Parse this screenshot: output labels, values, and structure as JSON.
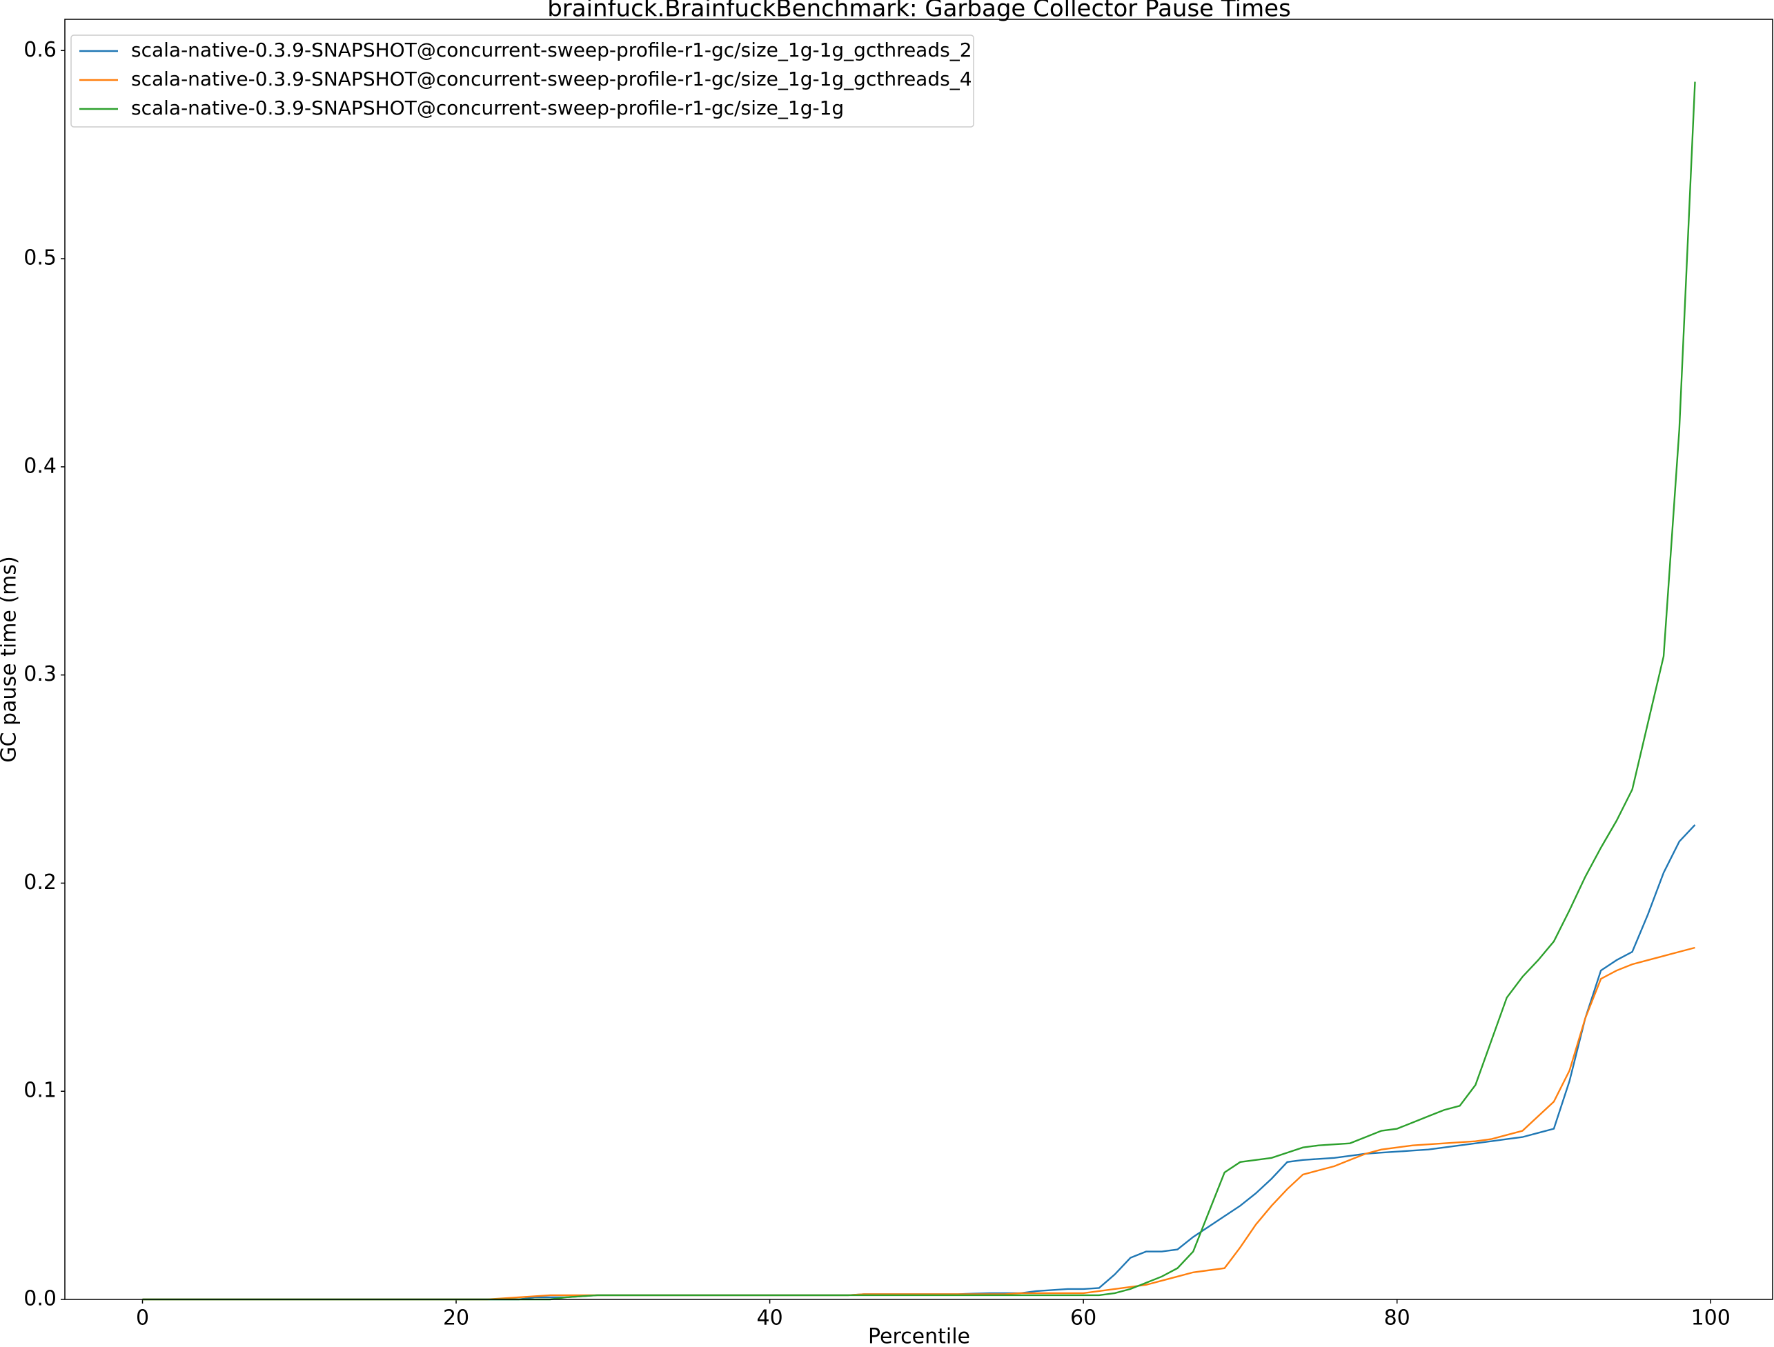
{
  "chart_data": {
    "type": "line",
    "title": "brainfuck.BrainfuckBenchmark: Garbage Collector Pause Times",
    "x_label": "Percentile",
    "y_label": "GC pause time (ms)",
    "x": [
      0,
      1,
      2,
      3,
      4,
      5,
      6,
      7,
      8,
      9,
      10,
      11,
      12,
      13,
      14,
      15,
      16,
      17,
      18,
      19,
      20,
      21,
      22,
      23,
      24,
      25,
      26,
      27,
      28,
      29,
      30,
      31,
      32,
      33,
      34,
      35,
      36,
      37,
      38,
      39,
      40,
      41,
      42,
      43,
      44,
      45,
      46,
      47,
      48,
      49,
      50,
      51,
      52,
      53,
      54,
      55,
      56,
      57,
      58,
      59,
      60,
      61,
      62,
      63,
      64,
      65,
      66,
      67,
      68,
      69,
      70,
      71,
      72,
      73,
      74,
      75,
      76,
      77,
      78,
      79,
      80,
      81,
      82,
      83,
      84,
      85,
      86,
      87,
      88,
      89,
      90,
      91,
      92,
      93,
      94,
      95,
      96,
      97,
      98,
      99
    ],
    "series": [
      {
        "name": "scala-native-0.3.9-SNAPSHOT@concurrent-sweep-profile-r1-gc/size_1g-1g_gcthreads_2",
        "color": "#1f77b4",
        "values": [
          0,
          0,
          0,
          0,
          0,
          0,
          0,
          0,
          0,
          0,
          0,
          0,
          0,
          0,
          0,
          0,
          0,
          0,
          0,
          0,
          0,
          0,
          0,
          0,
          0,
          0.001,
          0.001,
          0.001,
          0.0015,
          0.002,
          0.002,
          0.002,
          0.002,
          0.002,
          0.002,
          0.002,
          0.002,
          0.002,
          0.002,
          0.002,
          0.002,
          0.002,
          0.002,
          0.002,
          0.002,
          0.002,
          0.0025,
          0.0025,
          0.0025,
          0.0025,
          0.0025,
          0.0025,
          0.0025,
          0.0028,
          0.003,
          0.003,
          0.003,
          0.004,
          0.0045,
          0.005,
          0.005,
          0.0055,
          0.012,
          0.02,
          0.023,
          0.023,
          0.024,
          0.03,
          0.035,
          0.04,
          0.045,
          0.051,
          0.058,
          0.066,
          0.067,
          0.0675,
          0.068,
          0.069,
          0.07,
          0.0705,
          0.071,
          0.0715,
          0.072,
          0.073,
          0.074,
          0.075,
          0.076,
          0.077,
          0.078,
          0.08,
          0.082,
          0.105,
          0.135,
          0.158,
          0.163,
          0.167,
          0.185,
          0.205,
          0.22,
          0.228
        ]
      },
      {
        "name": "scala-native-0.3.9-SNAPSHOT@concurrent-sweep-profile-r1-gc/size_1g-1g_gcthreads_4",
        "color": "#ff7f0e",
        "values": [
          0,
          0,
          0,
          0,
          0,
          0,
          0,
          0,
          0,
          0,
          0,
          0,
          0,
          0,
          0,
          0,
          0,
          0,
          0,
          0,
          0,
          0,
          0,
          0.0005,
          0.001,
          0.0015,
          0.002,
          0.002,
          0.002,
          0.002,
          0.002,
          0.002,
          0.002,
          0.002,
          0.002,
          0.002,
          0.002,
          0.002,
          0.002,
          0.002,
          0.002,
          0.002,
          0.002,
          0.002,
          0.002,
          0.002,
          0.0025,
          0.0025,
          0.0025,
          0.0025,
          0.0025,
          0.0025,
          0.0025,
          0.0025,
          0.0025,
          0.0025,
          0.003,
          0.003,
          0.003,
          0.003,
          0.003,
          0.004,
          0.005,
          0.006,
          0.007,
          0.009,
          0.011,
          0.013,
          0.014,
          0.015,
          0.025,
          0.036,
          0.045,
          0.053,
          0.06,
          0.062,
          0.064,
          0.067,
          0.07,
          0.072,
          0.073,
          0.074,
          0.0745,
          0.075,
          0.0755,
          0.076,
          0.077,
          0.079,
          0.081,
          0.088,
          0.095,
          0.11,
          0.135,
          0.154,
          0.158,
          0.161,
          0.163,
          0.165,
          0.167,
          0.169
        ]
      },
      {
        "name": "scala-native-0.3.9-SNAPSHOT@concurrent-sweep-profile-r1-gc/size_1g-1g",
        "color": "#2ca02c",
        "values": [
          0,
          0,
          0,
          0,
          0,
          0,
          0,
          0,
          0,
          0,
          0,
          0,
          0,
          0,
          0,
          0,
          0,
          0,
          0,
          0,
          0,
          0,
          0,
          0,
          0,
          0,
          0,
          0.001,
          0.0015,
          0.002,
          0.002,
          0.002,
          0.002,
          0.002,
          0.002,
          0.002,
          0.002,
          0.002,
          0.002,
          0.002,
          0.002,
          0.002,
          0.002,
          0.002,
          0.002,
          0.002,
          0.002,
          0.002,
          0.002,
          0.002,
          0.002,
          0.002,
          0.002,
          0.002,
          0.002,
          0.002,
          0.002,
          0.002,
          0.002,
          0.002,
          0.002,
          0.002,
          0.003,
          0.005,
          0.008,
          0.011,
          0.015,
          0.023,
          0.042,
          0.061,
          0.066,
          0.067,
          0.068,
          0.0705,
          0.073,
          0.074,
          0.0745,
          0.075,
          0.078,
          0.081,
          0.082,
          0.085,
          0.088,
          0.091,
          0.093,
          0.103,
          0.124,
          0.145,
          0.155,
          0.163,
          0.172,
          0.187,
          0.203,
          0.217,
          0.23,
          0.245,
          0.277,
          0.309,
          0.418,
          0.585
        ]
      }
    ],
    "xlim": [
      -4.95,
      103.95
    ],
    "ylim": [
      0,
      0.615
    ],
    "xticks": [
      0,
      20,
      40,
      60,
      80,
      100
    ],
    "yticks": [
      {
        "value": 0,
        "label": "0.0"
      },
      0.1,
      0.2,
      0.3,
      0.4,
      0.5,
      0.6
    ],
    "legend": "upper left"
  }
}
